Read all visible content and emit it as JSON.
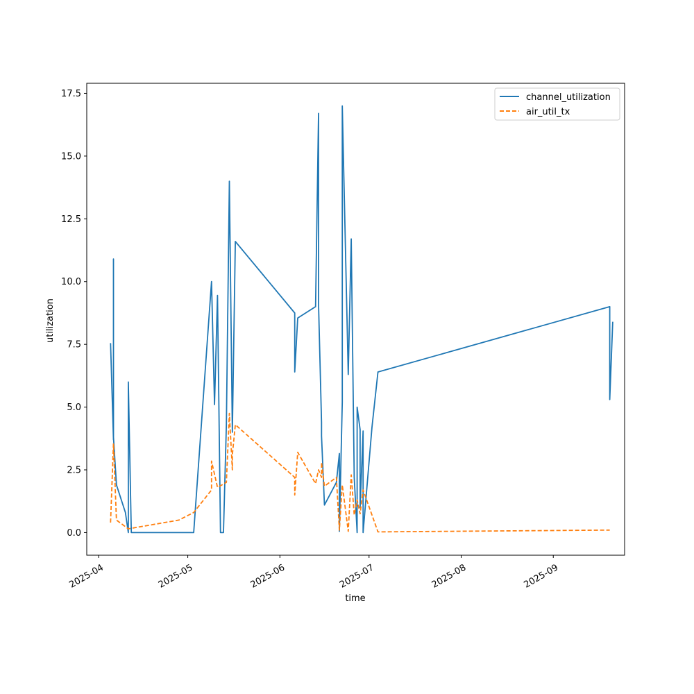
{
  "chart_data": {
    "type": "line",
    "title": "",
    "xlabel": "time",
    "ylabel": "utilization",
    "xlim": [
      "2025-03-28",
      "2025-09-25"
    ],
    "ylim": [
      -0.9,
      17.9
    ],
    "x_ticks": [
      {
        "date": "2025-04-01",
        "label": "2025-04"
      },
      {
        "date": "2025-05-01",
        "label": "2025-05"
      },
      {
        "date": "2025-06-01",
        "label": "2025-06"
      },
      {
        "date": "2025-07-01",
        "label": "2025-07"
      },
      {
        "date": "2025-08-01",
        "label": "2025-08"
      },
      {
        "date": "2025-09-01",
        "label": "2025-09"
      }
    ],
    "y_ticks": [
      {
        "value": 0.0,
        "label": "0.0"
      },
      {
        "value": 2.5,
        "label": "2.5"
      },
      {
        "value": 5.0,
        "label": "5.0"
      },
      {
        "value": 7.5,
        "label": "7.5"
      },
      {
        "value": 10.0,
        "label": "10.0"
      },
      {
        "value": 12.5,
        "label": "12.5"
      },
      {
        "value": 15.0,
        "label": "15.0"
      },
      {
        "value": 17.5,
        "label": "17.5"
      }
    ],
    "grid": false,
    "legend_position": "top-right",
    "series": [
      {
        "name": "channel_utilization",
        "color": "#1f77b4",
        "style": "solid",
        "points": [
          [
            "2025-04-05",
            7.55
          ],
          [
            "2025-04-06",
            3.7
          ],
          [
            "2025-04-06",
            10.9
          ],
          [
            "2025-04-06",
            3.8
          ],
          [
            "2025-04-07",
            1.9
          ],
          [
            "2025-04-10",
            0.8
          ],
          [
            "2025-04-11",
            0.0
          ],
          [
            "2025-04-11",
            6.0
          ],
          [
            "2025-04-12",
            0.0
          ],
          [
            "2025-05-03",
            0.0
          ],
          [
            "2025-05-09",
            10.0
          ],
          [
            "2025-05-10",
            5.1
          ],
          [
            "2025-05-11",
            9.45
          ],
          [
            "2025-05-12",
            0.0
          ],
          [
            "2025-05-13",
            0.0
          ],
          [
            "2025-05-14",
            4.3
          ],
          [
            "2025-05-15",
            14.0
          ],
          [
            "2025-05-16",
            4.0
          ],
          [
            "2025-05-17",
            11.6
          ],
          [
            "2025-06-06",
            8.75
          ],
          [
            "2025-06-06",
            6.4
          ],
          [
            "2025-06-07",
            8.55
          ],
          [
            "2025-06-13",
            9.0
          ],
          [
            "2025-06-14",
            16.7
          ],
          [
            "2025-06-14",
            9.1
          ],
          [
            "2025-06-15",
            4.4
          ],
          [
            "2025-06-15",
            3.85
          ],
          [
            "2025-06-16",
            1.1
          ],
          [
            "2025-06-20",
            2.0
          ],
          [
            "2025-06-21",
            3.15
          ],
          [
            "2025-06-21",
            0.05
          ],
          [
            "2025-06-22",
            5.2
          ],
          [
            "2025-06-22",
            17.0
          ],
          [
            "2025-06-24",
            6.3
          ],
          [
            "2025-06-25",
            11.7
          ],
          [
            "2025-06-26",
            2.2
          ],
          [
            "2025-06-27",
            0.0
          ],
          [
            "2025-06-27",
            5.0
          ],
          [
            "2025-06-28",
            4.1
          ],
          [
            "2025-06-28",
            1.0
          ],
          [
            "2025-06-29",
            4.05
          ],
          [
            "2025-06-29",
            0.0
          ],
          [
            "2025-07-02",
            4.2
          ],
          [
            "2025-07-04",
            6.4
          ],
          [
            "2025-09-20",
            9.0
          ],
          [
            "2025-09-20",
            5.3
          ],
          [
            "2025-09-21",
            8.4
          ]
        ]
      },
      {
        "name": "air_util_tx",
        "color": "#ff7f0e",
        "style": "dashed",
        "points": [
          [
            "2025-04-05",
            0.4
          ],
          [
            "2025-04-06",
            3.55
          ],
          [
            "2025-04-07",
            0.5
          ],
          [
            "2025-04-11",
            0.15
          ],
          [
            "2025-04-28",
            0.5
          ],
          [
            "2025-05-03",
            0.8
          ],
          [
            "2025-05-09",
            1.7
          ],
          [
            "2025-05-09",
            2.85
          ],
          [
            "2025-05-11",
            1.8
          ],
          [
            "2025-05-14",
            2.0
          ],
          [
            "2025-05-15",
            4.75
          ],
          [
            "2025-05-16",
            2.5
          ],
          [
            "2025-05-16",
            3.1
          ],
          [
            "2025-05-17",
            4.3
          ],
          [
            "2025-06-06",
            2.2
          ],
          [
            "2025-06-06",
            1.5
          ],
          [
            "2025-06-07",
            3.2
          ],
          [
            "2025-06-13",
            1.95
          ],
          [
            "2025-06-14",
            2.5
          ],
          [
            "2025-06-15",
            2.2
          ],
          [
            "2025-06-15",
            2.8
          ],
          [
            "2025-06-16",
            1.85
          ],
          [
            "2025-06-20",
            2.2
          ],
          [
            "2025-06-21",
            0.1
          ],
          [
            "2025-06-22",
            1.9
          ],
          [
            "2025-06-24",
            0.05
          ],
          [
            "2025-06-25",
            2.3
          ],
          [
            "2025-06-26",
            0.7
          ],
          [
            "2025-06-27",
            1.3
          ],
          [
            "2025-06-28",
            0.75
          ],
          [
            "2025-06-29",
            1.7
          ],
          [
            "2025-07-04",
            0.03
          ],
          [
            "2025-09-20",
            0.1
          ]
        ]
      }
    ]
  }
}
